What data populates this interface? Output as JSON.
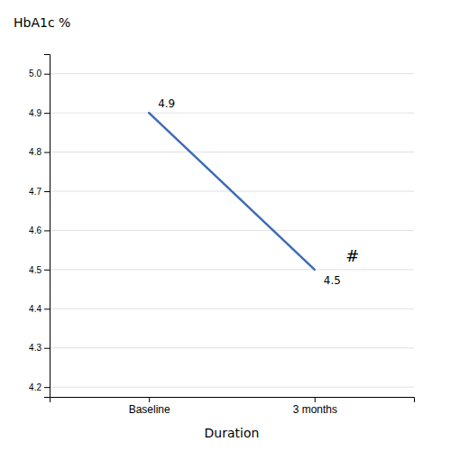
{
  "chart_data": {
    "type": "line",
    "categories": [
      "Baseline",
      "3 months"
    ],
    "values": [
      4.9,
      4.5
    ],
    "color": "#3D6CB5",
    "data_labels": true,
    "annotations": [
      {
        "text": "#"
      }
    ],
    "xlabel": "Duration",
    "ylabel": "HbA1c %",
    "ylim": [
      4.175,
      5.05
    ],
    "yticks": [
      4.2,
      4.3,
      4.4,
      4.5,
      4.6,
      4.7,
      4.8,
      4.9,
      {
        "value": 5.0,
        "label": "5.0"
      }
    ],
    "grid": true
  }
}
